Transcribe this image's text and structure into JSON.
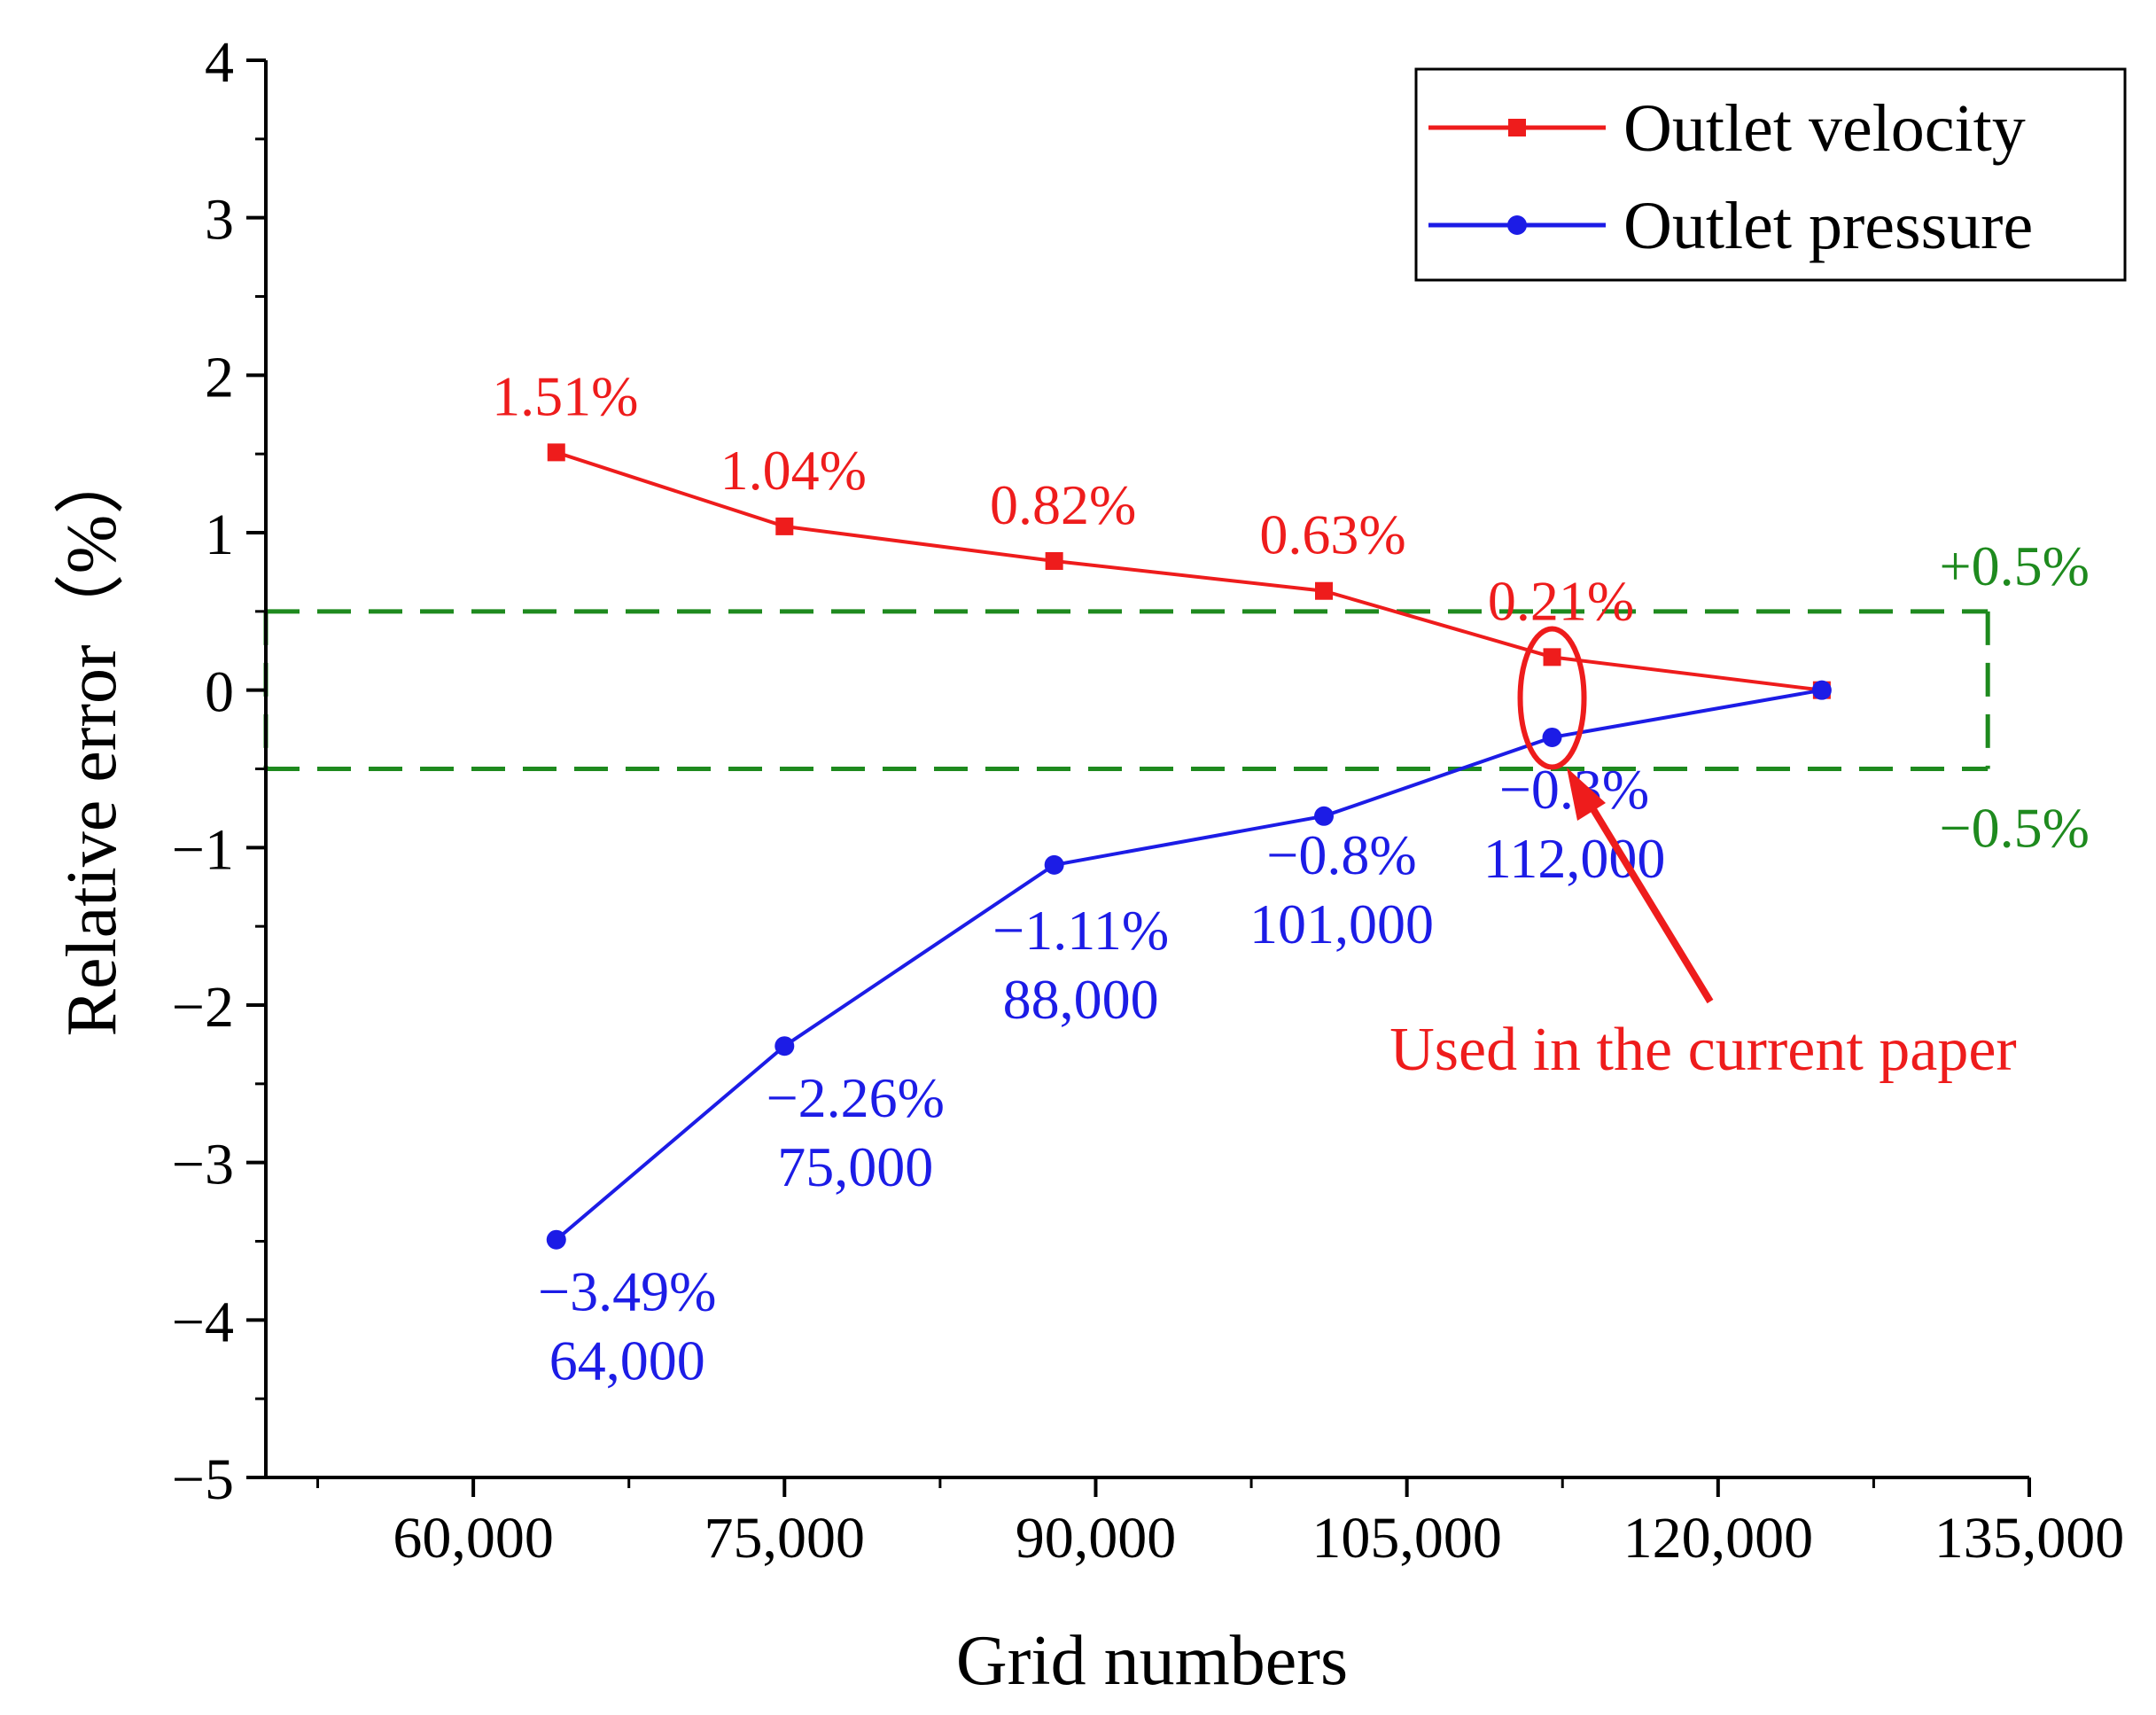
{
  "chart_data": {
    "type": "line",
    "xlabel": "Grid numbers",
    "ylabel": "Relative error（%）",
    "xlim": [
      50000,
      135000
    ],
    "ylim": [
      -5,
      4
    ],
    "x_ticks": [
      60000,
      75000,
      90000,
      105000,
      120000,
      135000
    ],
    "x_tick_labels": [
      "60,000",
      "75,000",
      "90,000",
      "105,000",
      "120,000",
      "135,000"
    ],
    "y_ticks": [
      -5,
      -4,
      -3,
      -2,
      -1,
      0,
      1,
      2,
      3,
      4
    ],
    "y_tick_labels": [
      "−5",
      "−4",
      "−3",
      "−2",
      "−1",
      "0",
      "1",
      "2",
      "3",
      "4"
    ],
    "grid": false,
    "legend_position": "top-right",
    "series": [
      {
        "name": "Outlet velocity",
        "color": "#ee1c1c",
        "marker": "square",
        "x": [
          64000,
          75000,
          88000,
          101000,
          112000,
          125000
        ],
        "y": [
          1.51,
          1.04,
          0.82,
          0.63,
          0.21,
          0
        ],
        "labels": [
          "1.51%",
          "1.04%",
          "0.82%",
          "0.63%",
          "0.21%"
        ]
      },
      {
        "name": "Outlet pressure",
        "color": "#1c1ce6",
        "marker": "circle",
        "x": [
          64000,
          75000,
          88000,
          101000,
          112000,
          125000
        ],
        "y": [
          -3.49,
          -2.26,
          -1.11,
          -0.8,
          -0.3,
          0
        ],
        "labels": [
          "−3.49%",
          "−2.26%",
          "−1.11%",
          "−0.8%",
          "−0.3%"
        ],
        "grid_labels": [
          "64,000",
          "75,000",
          "88,000",
          "101,000",
          "112,000"
        ]
      }
    ],
    "band": {
      "upper": 0.5,
      "lower": -0.5,
      "color": "#1e8a1e",
      "upper_label": "+0.5%",
      "lower_label": "−0.5%"
    },
    "annotation": {
      "text": "Used in the current paper",
      "color": "#ee1c1c",
      "target_x": 112000
    }
  }
}
